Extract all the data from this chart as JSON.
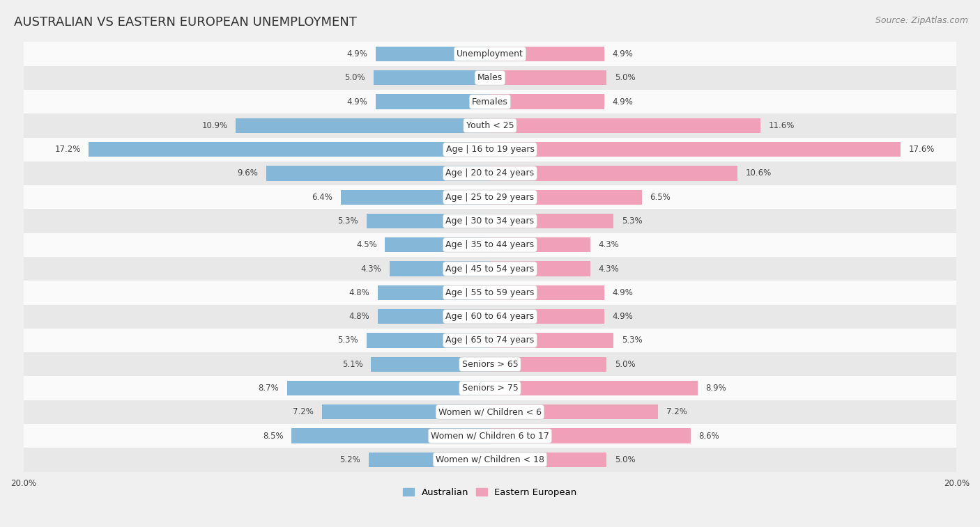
{
  "title": "AUSTRALIAN VS EASTERN EUROPEAN UNEMPLOYMENT",
  "source": "Source: ZipAtlas.com",
  "categories": [
    "Unemployment",
    "Males",
    "Females",
    "Youth < 25",
    "Age | 16 to 19 years",
    "Age | 20 to 24 years",
    "Age | 25 to 29 years",
    "Age | 30 to 34 years",
    "Age | 35 to 44 years",
    "Age | 45 to 54 years",
    "Age | 55 to 59 years",
    "Age | 60 to 64 years",
    "Age | 65 to 74 years",
    "Seniors > 65",
    "Seniors > 75",
    "Women w/ Children < 6",
    "Women w/ Children 6 to 17",
    "Women w/ Children < 18"
  ],
  "australian": [
    4.9,
    5.0,
    4.9,
    10.9,
    17.2,
    9.6,
    6.4,
    5.3,
    4.5,
    4.3,
    4.8,
    4.8,
    5.3,
    5.1,
    8.7,
    7.2,
    8.5,
    5.2
  ],
  "eastern_european": [
    4.9,
    5.0,
    4.9,
    11.6,
    17.6,
    10.6,
    6.5,
    5.3,
    4.3,
    4.3,
    4.9,
    4.9,
    5.3,
    5.0,
    8.9,
    7.2,
    8.6,
    5.0
  ],
  "australian_color": "#85b8d8",
  "eastern_european_color": "#f0a0b8",
  "background_color": "#f0f0f0",
  "row_color_light": "#fafafa",
  "row_color_dark": "#e8e8e8",
  "bar_height": 0.62,
  "x_max": 20.0,
  "legend_labels": [
    "Australian",
    "Eastern European"
  ],
  "label_fontsize": 9.0,
  "value_fontsize": 8.5,
  "title_fontsize": 13,
  "source_fontsize": 9
}
